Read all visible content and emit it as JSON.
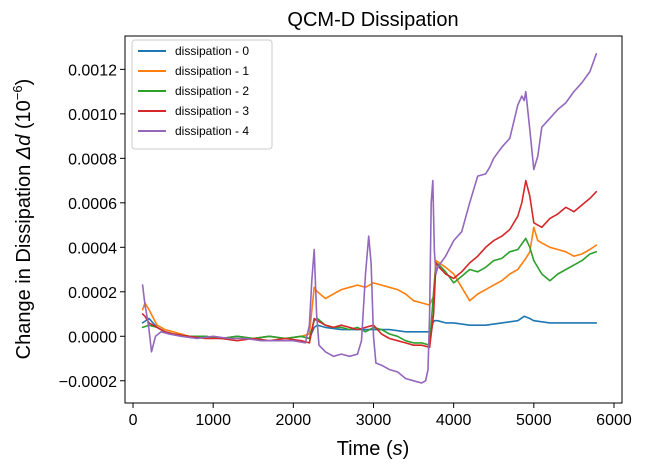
{
  "chart_data": {
    "type": "line",
    "title": "QCM-D Dissipation",
    "xlabel_main": "Time (",
    "xlabel_italic": "s",
    "xlabel_close": ")",
    "ylabel_main": "Change in Dissipation ",
    "ylabel_italic": "Δd",
    "ylabel_unit": " (10",
    "ylabel_exp": "−6",
    "ylabel_close": ")",
    "xlim": [
      -100,
      6100
    ],
    "ylim": [
      -0.0003,
      0.00135
    ],
    "xticks": [
      0,
      1000,
      2000,
      3000,
      4000,
      5000,
      6000
    ],
    "xtick_labels": [
      "0",
      "1000",
      "2000",
      "3000",
      "4000",
      "5000",
      "6000"
    ],
    "yticks": [
      -0.0002,
      0.0,
      0.0002,
      0.0004,
      0.0006,
      0.0008,
      0.001,
      0.0012
    ],
    "ytick_labels": [
      "−0.0002",
      "0.0000",
      "0.0002",
      "0.0004",
      "0.0006",
      "0.0008",
      "0.0010",
      "0.0012"
    ],
    "grid": false,
    "legend_position": "top-left",
    "series": [
      {
        "name": "dissipation - 0",
        "color": "#1f77b4",
        "x": [
          120,
          200,
          300,
          400,
          500,
          700,
          900,
          1100,
          1300,
          1500,
          1700,
          1900,
          2100,
          2200,
          2260,
          2300,
          2400,
          2600,
          2800,
          3000,
          3200,
          3400,
          3600,
          3720,
          3740,
          3760,
          3800,
          3900,
          4000,
          4200,
          4400,
          4600,
          4800,
          4880,
          4950,
          5000,
          5200,
          5400,
          5600,
          5780
        ],
        "y": [
          6e-05,
          8e-05,
          4e-05,
          2e-05,
          1e-05,
          0.0,
          0.0,
          -1e-05,
          0.0,
          -1e-05,
          0.0,
          -1e-05,
          0.0,
          -1e-05,
          4e-05,
          5e-05,
          4e-05,
          3e-05,
          3e-05,
          3e-05,
          3e-05,
          2e-05,
          2e-05,
          2e-05,
          6e-05,
          7e-05,
          7e-05,
          6e-05,
          6e-05,
          5e-05,
          5e-05,
          6e-05,
          7e-05,
          9e-05,
          8e-05,
          7e-05,
          6e-05,
          6e-05,
          6e-05,
          6e-05
        ]
      },
      {
        "name": "dissipation - 1",
        "color": "#ff7f0e",
        "x": [
          120,
          150,
          200,
          300,
          400,
          500,
          700,
          900,
          1100,
          1300,
          1500,
          1700,
          1900,
          2100,
          2200,
          2260,
          2300,
          2400,
          2500,
          2600,
          2700,
          2800,
          2900,
          3000,
          3100,
          3200,
          3300,
          3400,
          3500,
          3600,
          3700,
          3750,
          3780,
          3820,
          3900,
          4000,
          4100,
          4200,
          4300,
          4400,
          4500,
          4600,
          4700,
          4800,
          4900,
          4950,
          5000,
          5050,
          5100,
          5200,
          5300,
          5400,
          5500,
          5600,
          5700,
          5780
        ],
        "y": [
          0.00012,
          0.00015,
          0.00012,
          5e-05,
          3e-05,
          2e-05,
          0.0,
          0.0,
          -1e-05,
          0.0,
          -1e-05,
          0.0,
          -1e-05,
          0.0,
          1e-05,
          0.00022,
          0.0002,
          0.00017,
          0.00019,
          0.00021,
          0.00022,
          0.00023,
          0.00022,
          0.00024,
          0.00023,
          0.00022,
          0.00021,
          0.00019,
          0.00016,
          0.00015,
          0.00014,
          0.00018,
          0.00034,
          0.00033,
          0.00031,
          0.00028,
          0.00022,
          0.00016,
          0.00019,
          0.00021,
          0.00023,
          0.00025,
          0.00028,
          0.0003,
          0.00035,
          0.00038,
          0.00049,
          0.00043,
          0.00042,
          0.0004,
          0.00039,
          0.00038,
          0.00036,
          0.00037,
          0.00039,
          0.00041
        ]
      },
      {
        "name": "dissipation - 2",
        "color": "#2ca02c",
        "x": [
          120,
          200,
          300,
          400,
          500,
          700,
          900,
          1100,
          1300,
          1500,
          1700,
          1900,
          2100,
          2200,
          2260,
          2300,
          2400,
          2500,
          2600,
          2700,
          2800,
          2900,
          3000,
          3100,
          3200,
          3300,
          3400,
          3500,
          3600,
          3700,
          3750,
          3780,
          3820,
          3900,
          4000,
          4100,
          4200,
          4300,
          4400,
          4500,
          4600,
          4700,
          4800,
          4900,
          4950,
          5000,
          5100,
          5200,
          5300,
          5400,
          5500,
          5600,
          5700,
          5780
        ],
        "y": [
          4e-05,
          5e-05,
          4e-05,
          2e-05,
          1e-05,
          0.0,
          0.0,
          -1e-05,
          0.0,
          -1e-05,
          0.0,
          -1e-05,
          0.0,
          -1e-05,
          7e-05,
          8e-05,
          5e-05,
          4e-05,
          4e-05,
          3e-05,
          4e-05,
          2e-05,
          4e-05,
          3e-05,
          1e-05,
          0.0,
          -2e-05,
          -3e-05,
          -3e-05,
          -4e-05,
          0.0002,
          0.00033,
          0.00032,
          0.00029,
          0.00024,
          0.00027,
          0.0003,
          0.00029,
          0.00031,
          0.00034,
          0.00035,
          0.00038,
          0.00039,
          0.00044,
          0.0004,
          0.00034,
          0.00028,
          0.00025,
          0.00028,
          0.0003,
          0.00032,
          0.00034,
          0.00037,
          0.00038
        ]
      },
      {
        "name": "dissipation - 3",
        "color": "#d62728",
        "x": [
          120,
          150,
          200,
          300,
          400,
          500,
          700,
          900,
          1100,
          1300,
          1500,
          1700,
          1900,
          2100,
          2200,
          2260,
          2300,
          2400,
          2500,
          2600,
          2700,
          2800,
          2900,
          3000,
          3100,
          3200,
          3300,
          3400,
          3500,
          3600,
          3700,
          3750,
          3780,
          3820,
          3900,
          4000,
          4100,
          4200,
          4300,
          4400,
          4500,
          4600,
          4700,
          4800,
          4850,
          4900,
          4950,
          5000,
          5100,
          5200,
          5300,
          5400,
          5500,
          5600,
          5700,
          5780
        ],
        "y": [
          0.0001,
          9e-05,
          6e-05,
          4e-05,
          2e-05,
          1e-05,
          0.0,
          -1e-05,
          -1e-05,
          -2e-05,
          -1e-05,
          -2e-05,
          -1e-05,
          -2e-05,
          -3e-05,
          8e-05,
          7e-05,
          5e-05,
          4e-05,
          5e-05,
          4e-05,
          3e-05,
          4e-05,
          5e-05,
          1e-05,
          -1e-05,
          -2e-05,
          -3e-05,
          -4e-05,
          -4e-05,
          -5e-05,
          0.0001,
          0.00033,
          0.00031,
          0.00028,
          0.00026,
          0.00029,
          0.00033,
          0.00036,
          0.0004,
          0.00043,
          0.00045,
          0.00048,
          0.00054,
          0.0006,
          0.0007,
          0.00063,
          0.00051,
          0.00049,
          0.00053,
          0.00055,
          0.00058,
          0.00056,
          0.00059,
          0.00062,
          0.00065
        ]
      },
      {
        "name": "dissipation - 4",
        "color": "#9467bd",
        "x": [
          120,
          150,
          180,
          200,
          230,
          280,
          350,
          450,
          600,
          800,
          1000,
          1200,
          1400,
          1600,
          1800,
          2000,
          2150,
          2200,
          2230,
          2260,
          2290,
          2320,
          2400,
          2500,
          2600,
          2700,
          2800,
          2850,
          2900,
          2940,
          2970,
          3000,
          3030,
          3100,
          3200,
          3300,
          3400,
          3500,
          3600,
          3650,
          3680,
          3700,
          3720,
          3740,
          3760,
          3780,
          3800,
          3840,
          3900,
          4000,
          4100,
          4200,
          4300,
          4400,
          4450,
          4500,
          4600,
          4700,
          4800,
          4850,
          4880,
          4900,
          4950,
          5000,
          5050,
          5100,
          5200,
          5300,
          5400,
          5500,
          5600,
          5700,
          5780
        ],
        "y": [
          0.00023,
          0.00014,
          8e-05,
          3e-05,
          -7e-05,
          0.0,
          2e-05,
          1e-05,
          0.0,
          -1e-05,
          0.0,
          -1e-05,
          -1e-05,
          -2e-05,
          -2e-05,
          -2e-05,
          -3e-05,
          5e-05,
          0.00025,
          0.00039,
          0.0001,
          -4e-05,
          -7e-05,
          -9e-05,
          -8e-05,
          -9e-05,
          -8e-05,
          -2e-05,
          0.00028,
          0.00045,
          0.00033,
          0.0,
          -0.00012,
          -0.00013,
          -0.00015,
          -0.00016,
          -0.00019,
          -0.0002,
          -0.00021,
          -0.0002,
          -0.00015,
          0.0001,
          0.0006,
          0.0007,
          0.00038,
          0.00028,
          0.00031,
          0.00033,
          0.00036,
          0.00043,
          0.00047,
          0.0006,
          0.00072,
          0.00073,
          0.00076,
          0.0008,
          0.00085,
          0.00089,
          0.00104,
          0.00108,
          0.00106,
          0.0011,
          0.00093,
          0.00075,
          0.00081,
          0.00094,
          0.00098,
          0.00102,
          0.00105,
          0.0011,
          0.00114,
          0.00119,
          0.00127
        ]
      }
    ]
  }
}
